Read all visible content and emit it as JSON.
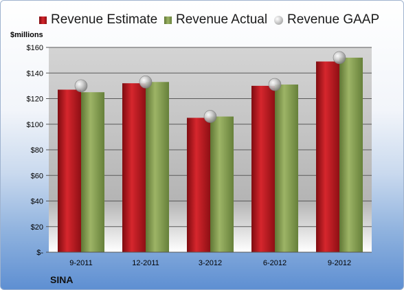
{
  "chart_data": {
    "type": "bar",
    "y_unit_label": "$millions",
    "categories": [
      "9-2011",
      "12-2011",
      "3-2012",
      "6-2012",
      "9-2012"
    ],
    "series": [
      {
        "name": "Revenue Estimate",
        "type": "bar",
        "color": "#c0161e",
        "values": [
          127,
          132,
          105,
          130,
          149
        ]
      },
      {
        "name": "Revenue Actual",
        "type": "bar",
        "color": "#8fa65a",
        "values": [
          125,
          133,
          106,
          131,
          152
        ]
      },
      {
        "name": "Revenue GAAP",
        "type": "marker",
        "color": "#b0b0b0",
        "values": [
          130,
          133,
          106,
          131,
          152
        ]
      }
    ],
    "ylim": [
      0,
      160
    ],
    "y_ticks": [
      0,
      20,
      40,
      60,
      80,
      100,
      120,
      140,
      160
    ],
    "y_tick_labels": [
      "$-",
      "$20",
      "$40",
      "$60",
      "$80",
      "$100",
      "$120",
      "$140",
      "$160"
    ],
    "grid": true,
    "legend_position": "top"
  },
  "footer": {
    "company": "SINA"
  }
}
